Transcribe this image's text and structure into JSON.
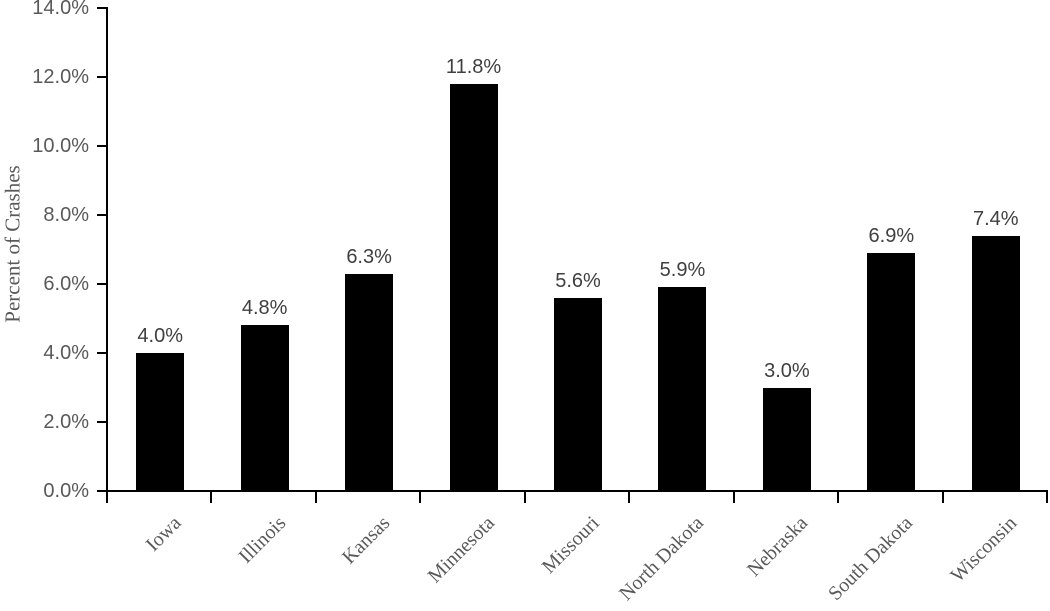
{
  "chart_data": {
    "type": "bar",
    "title": "",
    "xlabel": "",
    "ylabel": "Percent of Crashes",
    "categories": [
      "Iowa",
      "Illinois",
      "Kansas",
      "Minnesota",
      "Missouri",
      "North Dakota",
      "Nebraska",
      "South Dakota",
      "Wisconsin"
    ],
    "values": [
      4.0,
      4.8,
      6.3,
      11.8,
      5.6,
      5.9,
      3.0,
      6.9,
      7.4
    ],
    "value_labels": [
      "4.0%",
      "4.8%",
      "6.3%",
      "11.8%",
      "5.6%",
      "5.9%",
      "3.0%",
      "6.9%",
      "7.4%"
    ],
    "ylim": [
      0,
      14
    ],
    "y_ticks": [
      0,
      2,
      4,
      6,
      8,
      10,
      12,
      14
    ],
    "y_tick_labels": [
      "0.0%",
      "2.0%",
      "4.0%",
      "6.0%",
      "8.0%",
      "10.0%",
      "12.0%",
      "14.0%"
    ],
    "grid": false,
    "legend": "none",
    "category_label_rotation_deg": -45,
    "colors": {
      "bar": "#000000",
      "axis": "#000000",
      "axis_tick_label": "#595959",
      "data_label": "#404040",
      "category_label": "#595959",
      "axis_title": "#595959",
      "background": "#ffffff"
    }
  }
}
